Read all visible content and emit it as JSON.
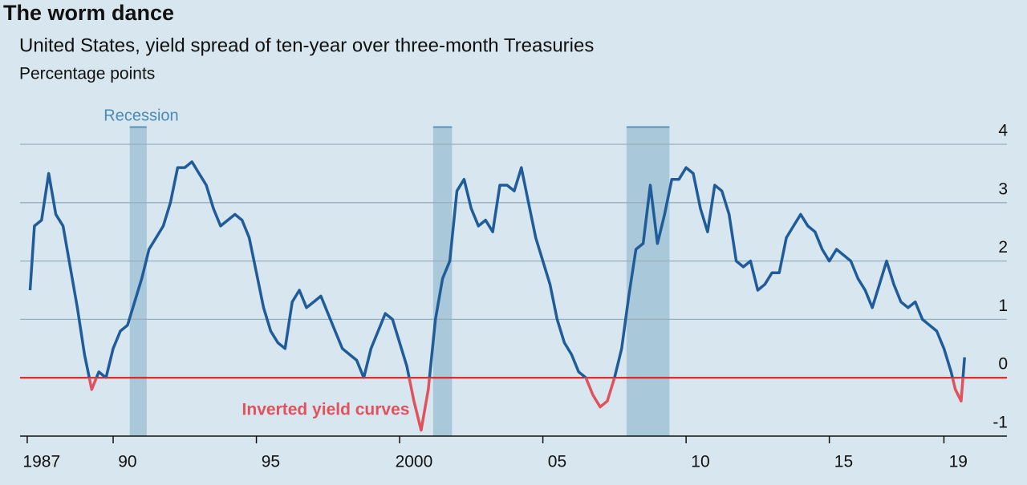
{
  "chart_data": {
    "type": "line",
    "title": "The worm dance",
    "subtitle": "United States, yield spread of ten-year over three-month Treasuries",
    "y_label": "Percentage points",
    "recession_label": "Recession",
    "inverted_label": "Inverted yield curves",
    "color": "#1f5c99",
    "below_zero_color": "#e0525c",
    "zero_line_color": "#e3120b",
    "recession_color": "#a9c8da",
    "recessions": [
      [
        1990.58,
        1991.17
      ],
      [
        2001.17,
        2001.83
      ],
      [
        2007.92,
        2009.42
      ]
    ],
    "x": [
      1987.1,
      1987.25,
      1987.5,
      1987.75,
      1988,
      1988.25,
      1988.5,
      1988.75,
      1989,
      1989.25,
      1989.5,
      1989.75,
      1990,
      1990.25,
      1990.5,
      1990.75,
      1991,
      1991.25,
      1991.5,
      1991.75,
      1992,
      1992.25,
      1992.5,
      1992.75,
      1993,
      1993.25,
      1993.5,
      1993.75,
      1994,
      1994.25,
      1994.5,
      1994.75,
      1995,
      1995.25,
      1995.5,
      1995.75,
      1996,
      1996.25,
      1996.5,
      1996.75,
      1997,
      1997.25,
      1997.5,
      1997.75,
      1998,
      1998.25,
      1998.5,
      1998.75,
      1999,
      1999.25,
      1999.5,
      1999.75,
      2000,
      2000.25,
      2000.5,
      2000.75,
      2001,
      2001.25,
      2001.5,
      2001.75,
      2002,
      2002.25,
      2002.5,
      2002.75,
      2003,
      2003.25,
      2003.5,
      2003.75,
      2004,
      2004.25,
      2004.5,
      2004.75,
      2005,
      2005.25,
      2005.5,
      2005.75,
      2006,
      2006.25,
      2006.5,
      2006.75,
      2007,
      2007.25,
      2007.5,
      2007.75,
      2008,
      2008.25,
      2008.5,
      2008.75,
      2009,
      2009.25,
      2009.5,
      2009.75,
      2010,
      2010.25,
      2010.5,
      2010.75,
      2011,
      2011.25,
      2011.5,
      2011.75,
      2012,
      2012.25,
      2012.5,
      2012.75,
      2013,
      2013.25,
      2013.5,
      2013.75,
      2014,
      2014.25,
      2014.5,
      2014.75,
      2015,
      2015.25,
      2015.5,
      2015.75,
      2016,
      2016.25,
      2016.5,
      2016.75,
      2017,
      2017.25,
      2017.5,
      2017.75,
      2018,
      2018.25,
      2018.5,
      2018.75,
      2019,
      2019.25,
      2019.4,
      2019.6,
      2019.72
    ],
    "values": [
      1.5,
      2.6,
      2.7,
      3.5,
      2.8,
      2.6,
      1.9,
      1.2,
      0.4,
      -0.2,
      0.1,
      0.0,
      0.5,
      0.8,
      0.9,
      1.3,
      1.7,
      2.2,
      2.4,
      2.6,
      3.0,
      3.6,
      3.6,
      3.7,
      3.5,
      3.3,
      2.9,
      2.6,
      2.7,
      2.8,
      2.7,
      2.4,
      1.8,
      1.2,
      0.8,
      0.6,
      0.5,
      1.3,
      1.5,
      1.2,
      1.3,
      1.4,
      1.1,
      0.8,
      0.5,
      0.4,
      0.3,
      0.0,
      0.5,
      0.8,
      1.1,
      1.0,
      0.6,
      0.2,
      -0.4,
      -0.9,
      -0.2,
      1.0,
      1.7,
      2.0,
      3.2,
      3.4,
      2.9,
      2.6,
      2.7,
      2.5,
      3.3,
      3.3,
      3.2,
      3.6,
      3.0,
      2.4,
      2.0,
      1.6,
      1.0,
      0.6,
      0.4,
      0.1,
      0.0,
      -0.3,
      -0.5,
      -0.4,
      0.0,
      0.5,
      1.4,
      2.2,
      2.3,
      3.3,
      2.3,
      2.8,
      3.4,
      3.4,
      3.6,
      3.5,
      2.9,
      2.5,
      3.3,
      3.2,
      2.8,
      2.0,
      1.9,
      2.0,
      1.5,
      1.6,
      1.8,
      1.8,
      2.4,
      2.6,
      2.8,
      2.6,
      2.5,
      2.2,
      2.0,
      2.2,
      2.1,
      2.0,
      1.7,
      1.5,
      1.2,
      1.6,
      2.0,
      1.6,
      1.3,
      1.2,
      1.3,
      1.0,
      0.9,
      0.8,
      0.5,
      0.1,
      -0.2,
      -0.4,
      0.35
    ],
    "xlim": [
      1986.75,
      2021.2
    ],
    "xticks": [
      1987,
      {
        "value": 1990,
        "label": "90"
      },
      {
        "value": 1995,
        "label": "95"
      },
      2000,
      {
        "value": 2005,
        "label": "05"
      },
      {
        "value": 2010,
        "label": "10"
      },
      {
        "value": 2015,
        "label": "15"
      },
      {
        "value": 2019,
        "label": "19"
      }
    ],
    "ylim": [
      -1,
      4
    ],
    "yticks": [
      -1,
      0,
      1,
      2,
      3,
      4
    ],
    "grid": true
  }
}
